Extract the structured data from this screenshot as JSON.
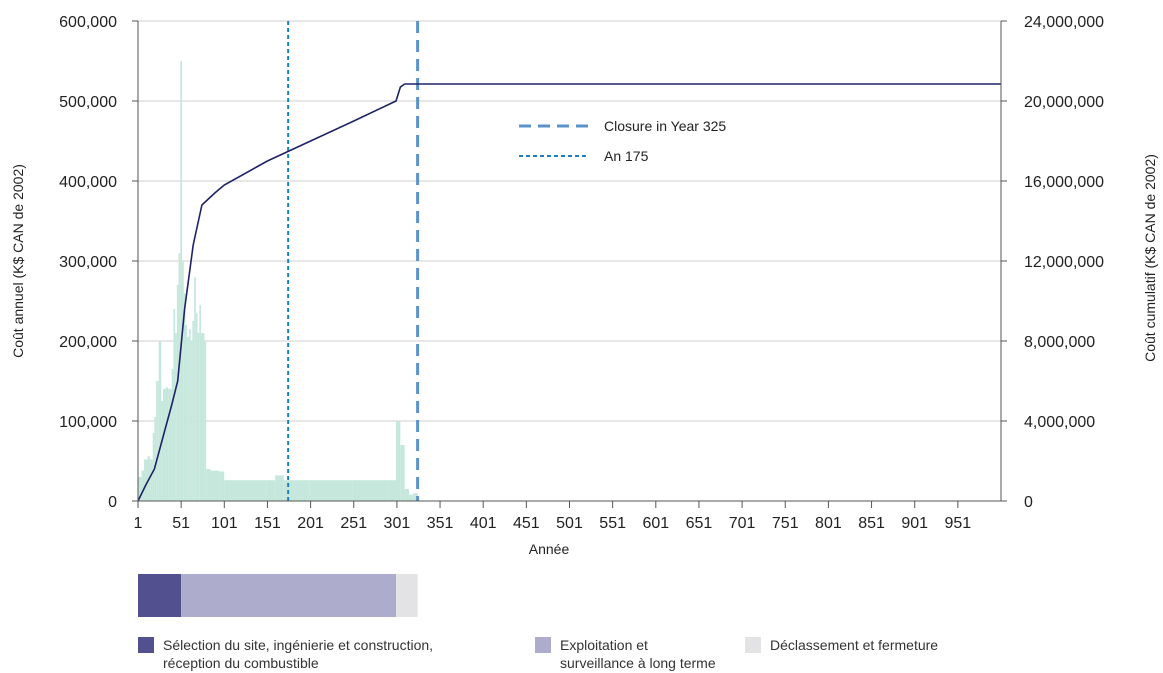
{
  "chart_data": {
    "type": "bar",
    "xlabel": "Année",
    "ylabel": "Coût annuel (K$ CAN de 2002)",
    "ylabel_right": "Coût cumulatif (K$ CAN de 2002)",
    "xlim": [
      1,
      1001
    ],
    "ylim": [
      0,
      600000
    ],
    "ylim_right": [
      0,
      24000000
    ],
    "x_tick_labels": [
      "1",
      "51",
      "101",
      "151",
      "201",
      "251",
      "301",
      "351",
      "401",
      "451",
      "501",
      "551",
      "601",
      "651",
      "701",
      "751",
      "801",
      "851",
      "901",
      "951"
    ],
    "y_tick_labels": [
      "0",
      "100,000",
      "200,000",
      "300,000",
      "400,000",
      "500,000",
      "600,000"
    ],
    "y_right_tick_labels": [
      "0",
      "4,000,000",
      "8,000,000",
      "12,000,000",
      "16,000,000",
      "20,000,000",
      "24,000,000"
    ],
    "grid": true,
    "bar_color": "#c6e8dc",
    "line_color": "#1f2366",
    "annual_cost": [
      [
        1,
        30000
      ],
      [
        5,
        38000
      ],
      [
        8,
        52000
      ],
      [
        12,
        56000
      ],
      [
        15,
        52000
      ],
      [
        18,
        85000
      ],
      [
        20,
        105000
      ],
      [
        22,
        150000
      ],
      [
        25,
        200000
      ],
      [
        28,
        125000
      ],
      [
        30,
        140000
      ],
      [
        33,
        142000
      ],
      [
        36,
        140000
      ],
      [
        40,
        165000
      ],
      [
        42,
        240000
      ],
      [
        44,
        210000
      ],
      [
        46,
        270000
      ],
      [
        48,
        310000
      ],
      [
        50,
        550000
      ],
      [
        52,
        300000
      ],
      [
        54,
        260000
      ],
      [
        56,
        220000
      ],
      [
        58,
        205000
      ],
      [
        60,
        215000
      ],
      [
        62,
        200000
      ],
      [
        64,
        225000
      ],
      [
        66,
        280000
      ],
      [
        68,
        235000
      ],
      [
        70,
        210000
      ],
      [
        72,
        245000
      ],
      [
        74,
        210000
      ],
      [
        78,
        200000
      ],
      [
        80,
        40000
      ],
      [
        85,
        38000
      ],
      [
        95,
        37000
      ],
      [
        101,
        26000
      ],
      [
        150,
        26000
      ],
      [
        160,
        32000
      ],
      [
        170,
        26000
      ],
      [
        200,
        26000
      ],
      [
        250,
        26000
      ],
      [
        290,
        26000
      ],
      [
        300,
        100000
      ],
      [
        305,
        70000
      ],
      [
        310,
        15000
      ],
      [
        315,
        8000
      ],
      [
        320,
        10000
      ],
      [
        325,
        2000
      ]
    ],
    "cumulative_cost": [
      [
        1,
        0
      ],
      [
        10,
        800000
      ],
      [
        20,
        1600000
      ],
      [
        30,
        3200000
      ],
      [
        40,
        4800000
      ],
      [
        47,
        6000000
      ],
      [
        55,
        9600000
      ],
      [
        65,
        12800000
      ],
      [
        75,
        14800000
      ],
      [
        80,
        15000000
      ],
      [
        90,
        15400000
      ],
      [
        101,
        15800000
      ],
      [
        151,
        17000000
      ],
      [
        201,
        18000000
      ],
      [
        251,
        19000000
      ],
      [
        300,
        20000000
      ],
      [
        305,
        20700000
      ],
      [
        310,
        20850000
      ],
      [
        325,
        20850000
      ],
      [
        1001,
        20850000
      ]
    ],
    "vlines": [
      {
        "x": 325,
        "label": "Closure in Year 325",
        "style": "dashed",
        "color": "#5b93c9"
      },
      {
        "x": 175,
        "label": "An 175",
        "style": "dotted",
        "color": "#1a80c0"
      }
    ],
    "phases": [
      {
        "label": "Sélection du site, ingénierie et construction, réception du combustible",
        "start": 1,
        "end": 51,
        "color": "#52508f"
      },
      {
        "label": "Exploitation et surveillance à long terme",
        "start": 51,
        "end": 300,
        "color": "#aeaccc"
      },
      {
        "label": "Déclassement et fermeture",
        "start": 300,
        "end": 325,
        "color": "#e3e3e5"
      }
    ]
  },
  "legend": {
    "closure_label": "Closure in Year 325",
    "an175_label": "An 175"
  },
  "phase_legend": {
    "site": {
      "line1": "Sélection du site, ingénierie et construction,",
      "line2": "réception du combustible"
    },
    "operation": {
      "line1": "Exploitation et",
      "line2": "surveillance à long terme"
    },
    "decommissioning": {
      "line1": "Déclassement et fermeture",
      "line2": ""
    }
  }
}
